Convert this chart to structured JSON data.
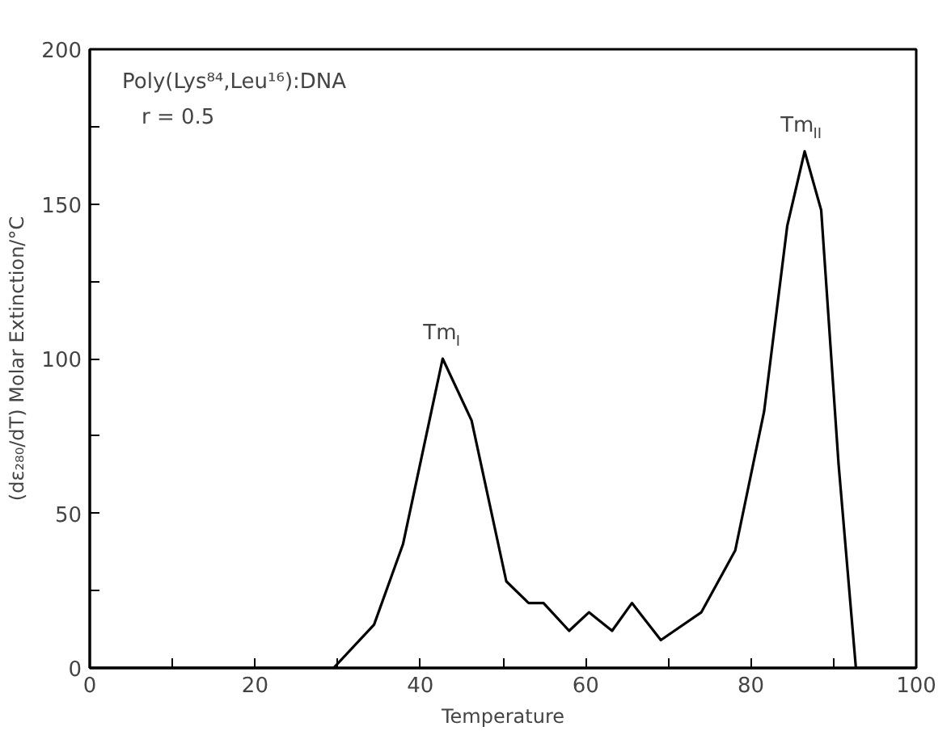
{
  "chart_data": {
    "type": "line",
    "xlabel": "Temperature",
    "ylabel": "(dε₂₈₀/dT) Molar Extinction/°C",
    "xlim": [
      0,
      100
    ],
    "ylim": [
      0,
      200
    ],
    "xticks": [
      0,
      {
        "value": 10,
        "label": null
      },
      20,
      {
        "value": 30,
        "label": null
      },
      40,
      {
        "value": 50,
        "label": null
      },
      60,
      {
        "value": 70,
        "label": null
      },
      80,
      {
        "value": 90,
        "label": null
      },
      100
    ],
    "yticks": [
      0,
      {
        "value": 25,
        "label": null
      },
      50,
      {
        "value": 75,
        "label": null
      },
      100,
      {
        "value": 125,
        "label": null
      },
      150,
      {
        "value": 175,
        "label": null
      },
      200
    ],
    "marker": "none",
    "line_style": "solid",
    "series": [
      {
        "color": "#000000",
        "x": [
          0,
          29.5,
          34.4,
          37.9,
          42.7,
          46.2,
          50.4,
          53.1,
          54.9,
          58,
          60.4,
          63.2,
          65.6,
          69.1,
          74,
          78.1,
          81.6,
          84.4,
          86.5,
          88.5,
          90.6,
          92.7,
          100
        ],
        "values": [
          0,
          0,
          14,
          40,
          100,
          80,
          28,
          21,
          21,
          12,
          18,
          12,
          21,
          9,
          18,
          38,
          83,
          143,
          167,
          148,
          66,
          0,
          0
        ]
      }
    ],
    "annotations": [
      "Poly(Lys⁸⁴,Leu¹⁶):DNA",
      "r = 0.5",
      {
        "text": "Tm$_{I}$",
        "x": 42.7,
        "y": 100
      },
      {
        "text": "Tm$_{II}$",
        "x": 86.5,
        "y": 167
      }
    ]
  }
}
